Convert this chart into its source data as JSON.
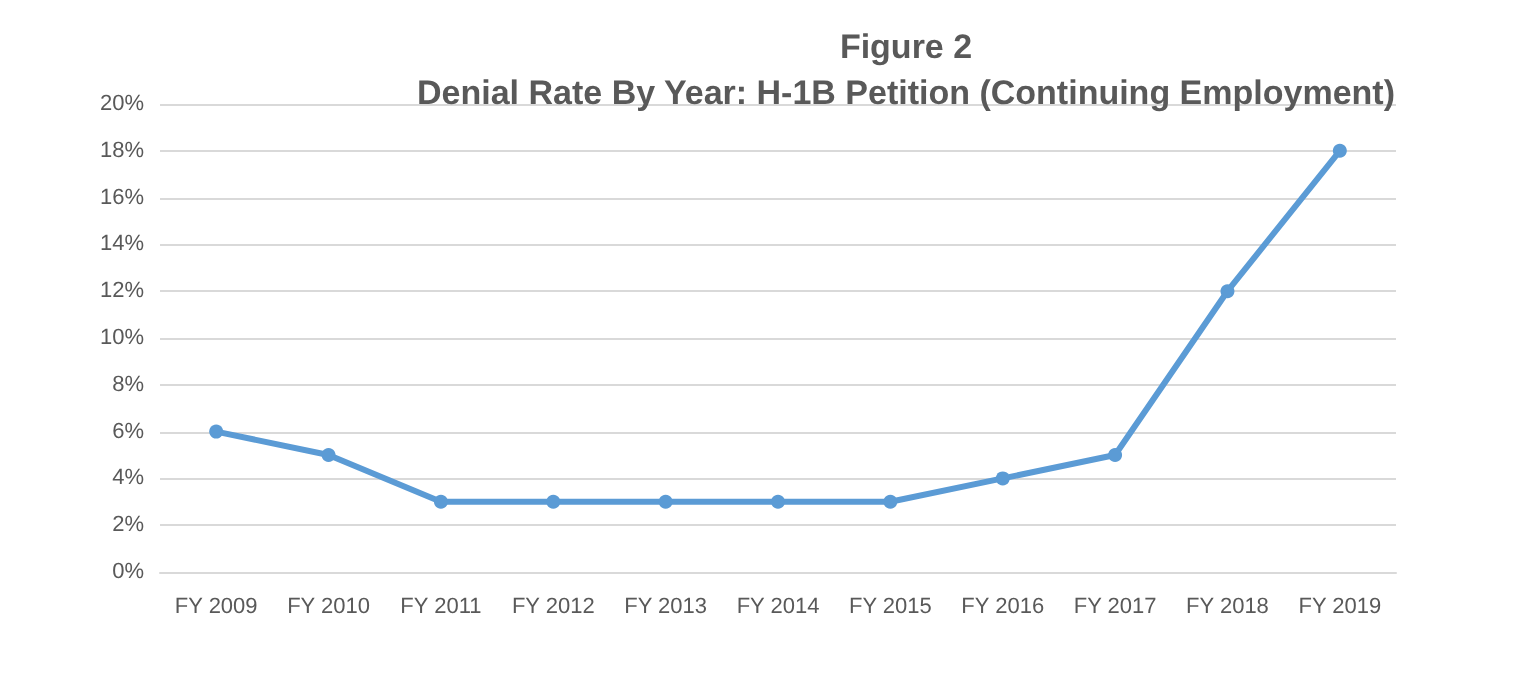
{
  "chart_data": {
    "type": "line",
    "title": "Figure 2",
    "subtitle": "Denial Rate By Year: H-1B Petition (Continuing Employment)",
    "categories": [
      "FY 2009",
      "FY 2010",
      "FY 2011",
      "FY 2012",
      "FY 2013",
      "FY 2014",
      "FY 2015",
      "FY 2016",
      "FY 2017",
      "FY 2018",
      "FY 2019"
    ],
    "series": [
      {
        "color": "#5b9bd5",
        "values": [
          6,
          5,
          3,
          3,
          3,
          3,
          3,
          4,
          5,
          12,
          18
        ]
      }
    ],
    "ylim": [
      0,
      20
    ],
    "yticks": [
      {
        "value": 0,
        "label": "0%"
      },
      {
        "value": 2,
        "label": "2%"
      },
      {
        "value": 4,
        "label": "4%"
      },
      {
        "value": 6,
        "label": "6%"
      },
      {
        "value": 8,
        "label": "8%"
      },
      {
        "value": 10,
        "label": "10%"
      },
      {
        "value": 12,
        "label": "12%"
      },
      {
        "value": 14,
        "label": "14%"
      },
      {
        "value": 16,
        "label": "16%"
      },
      {
        "value": 18,
        "label": "18%"
      },
      {
        "value": 20,
        "label": "20%"
      }
    ],
    "grid": "y",
    "marker": "circle",
    "line_style": "solid"
  }
}
